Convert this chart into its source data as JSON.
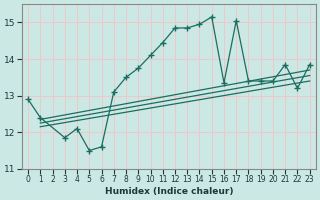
{
  "xlabel": "Humidex (Indice chaleur)",
  "bg_color": "#cce8e4",
  "grid_color": "#f0c8c8",
  "line_color": "#1a6e60",
  "xlim": [
    -0.5,
    23.5
  ],
  "ylim": [
    11.0,
    15.5
  ],
  "xticks": [
    0,
    1,
    2,
    3,
    4,
    5,
    6,
    7,
    8,
    9,
    10,
    11,
    12,
    13,
    14,
    15,
    16,
    17,
    18,
    19,
    20,
    21,
    22,
    23
  ],
  "yticks": [
    11,
    12,
    13,
    14,
    15
  ],
  "main_x": [
    0,
    1,
    3,
    4,
    5,
    6,
    7,
    8,
    9,
    10,
    11,
    12,
    13,
    14,
    15,
    16,
    17,
    18,
    19,
    20,
    21,
    22,
    23
  ],
  "main_y": [
    12.9,
    12.4,
    11.85,
    12.1,
    11.5,
    11.6,
    13.1,
    13.5,
    13.75,
    14.1,
    14.45,
    14.85,
    14.85,
    14.95,
    15.15,
    13.35,
    15.05,
    13.4,
    13.4,
    13.4,
    13.85,
    13.2,
    13.85
  ],
  "trend_lines": [
    {
      "x0": 1,
      "y0": 12.15,
      "x1": 23,
      "y1": 13.4
    },
    {
      "x0": 1,
      "y0": 12.25,
      "x1": 23,
      "y1": 13.55
    },
    {
      "x0": 1,
      "y0": 12.35,
      "x1": 23,
      "y1": 13.7
    }
  ]
}
